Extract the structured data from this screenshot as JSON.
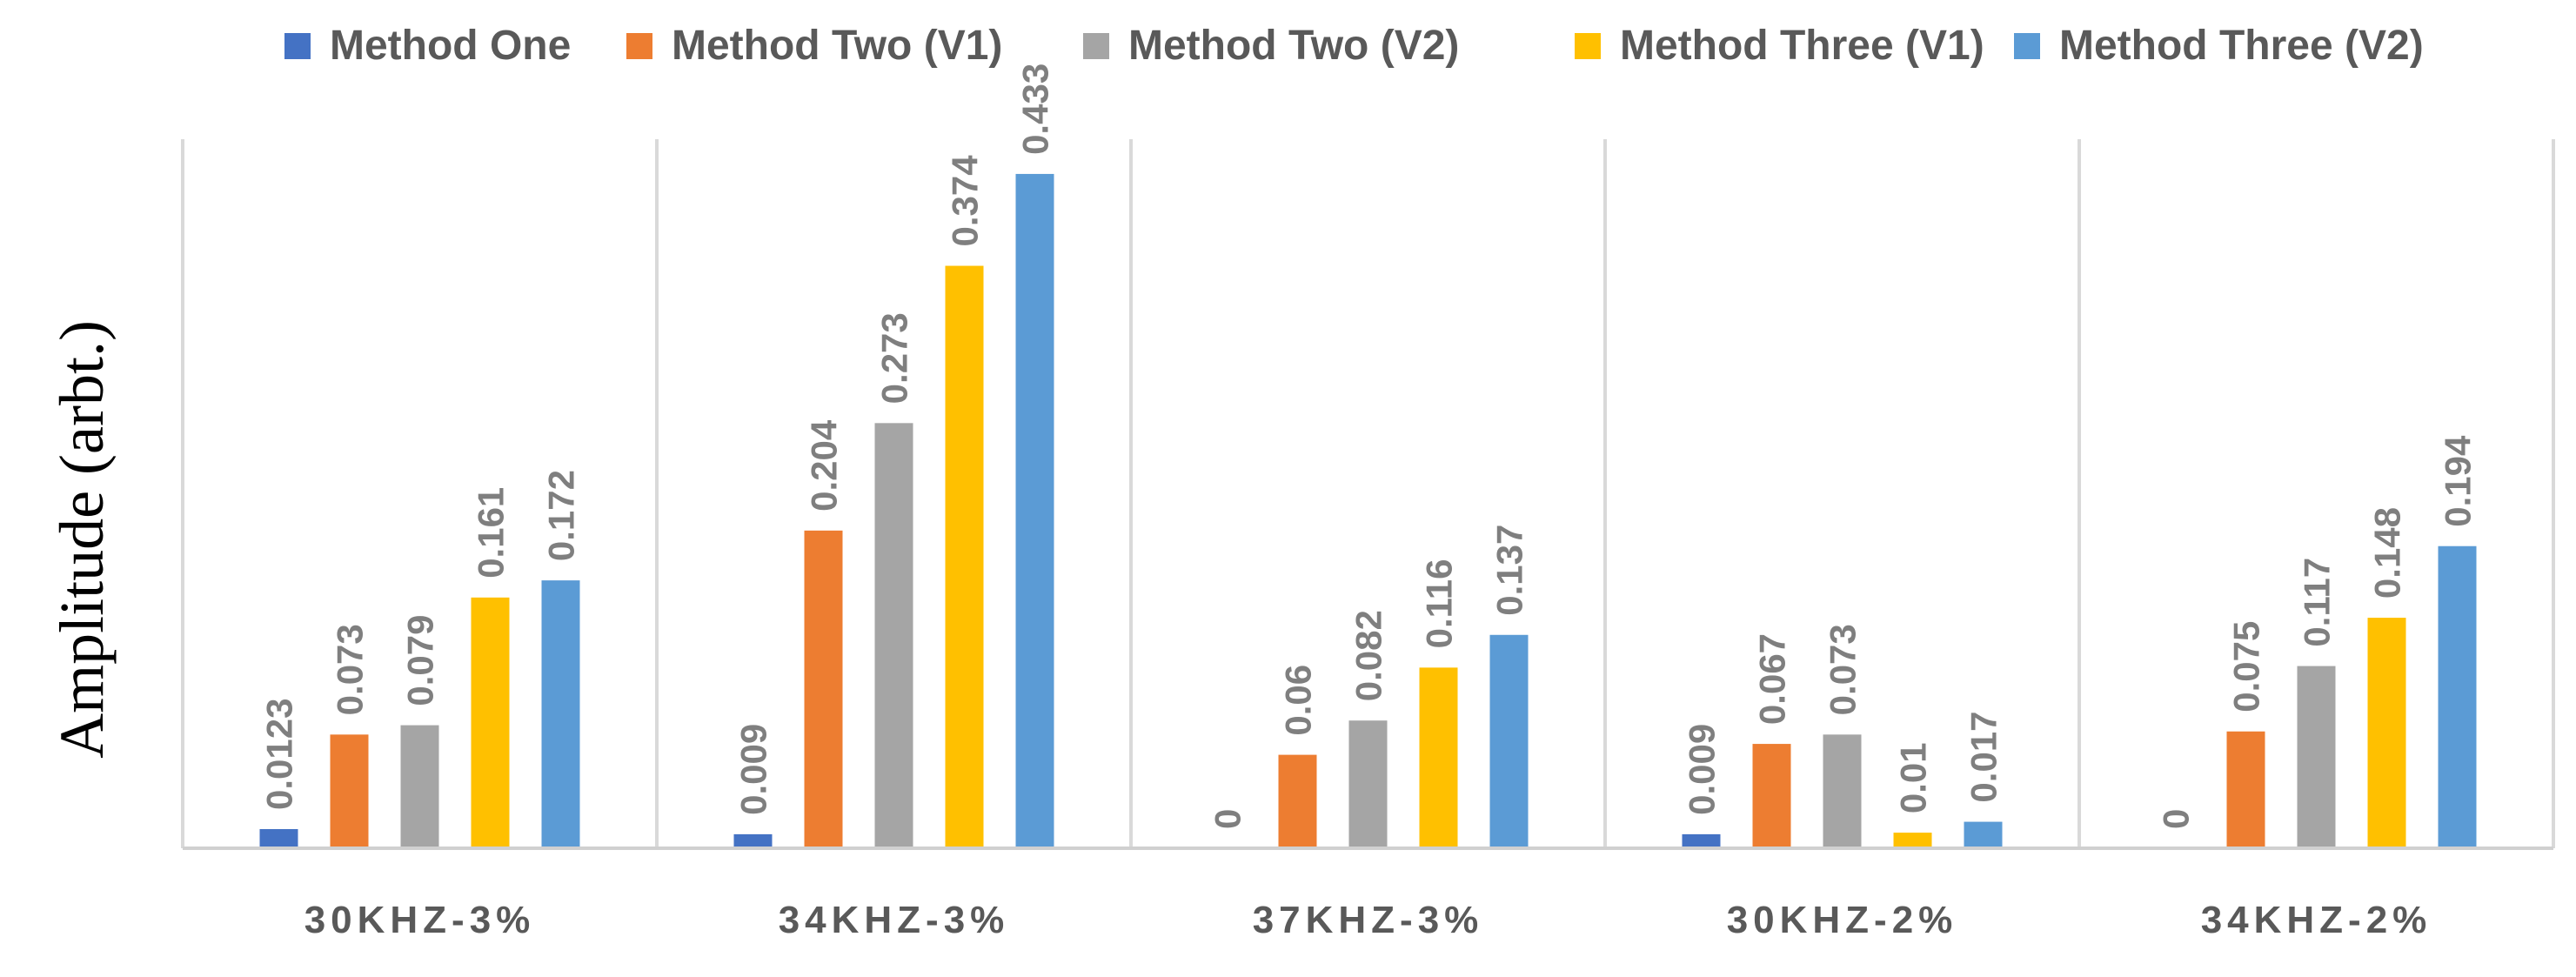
{
  "chart_data": {
    "type": "bar",
    "title": "",
    "xlabel": "",
    "ylabel": "Amplitude (arbt.)",
    "ylim": [
      0,
      0.5
    ],
    "grid": false,
    "legend_position": "top",
    "categories": [
      "30KHZ-3%",
      "34KHZ-3%",
      "37KHZ-3%",
      "30KHZ-2%",
      "34KHZ-2%"
    ],
    "series": [
      {
        "name": "Method One",
        "color": "#4472C4",
        "values": [
          0.0123,
          0.009,
          0,
          0.009,
          0
        ],
        "labels": [
          "0.0123",
          "0.009",
          "0",
          "0.009",
          "0"
        ]
      },
      {
        "name": "Method Two (V1)",
        "color": "#ED7D31",
        "values": [
          0.073,
          0.204,
          0.06,
          0.067,
          0.075
        ],
        "labels": [
          "0.073",
          "0.204",
          "0.06",
          "0.067",
          "0.075"
        ]
      },
      {
        "name": "Method Two (V2)",
        "color": "#A5A5A5",
        "values": [
          0.079,
          0.273,
          0.082,
          0.073,
          0.117
        ],
        "labels": [
          "0.079",
          "0.273",
          "0.082",
          "0.073",
          "0.117"
        ]
      },
      {
        "name": "Method Three (V1)",
        "color": "#FFC000",
        "values": [
          0.161,
          0.374,
          0.116,
          0.01,
          0.148
        ],
        "labels": [
          "0.161",
          "0.374",
          "0.116",
          "0.01",
          "0.148"
        ]
      },
      {
        "name": "Method Three (V2)",
        "color": "#5B9BD5",
        "values": [
          0.172,
          0.433,
          0.137,
          0.017,
          0.194
        ],
        "labels": [
          "0.172",
          "0.433",
          "0.137",
          "0.017",
          "0.194"
        ]
      }
    ]
  }
}
